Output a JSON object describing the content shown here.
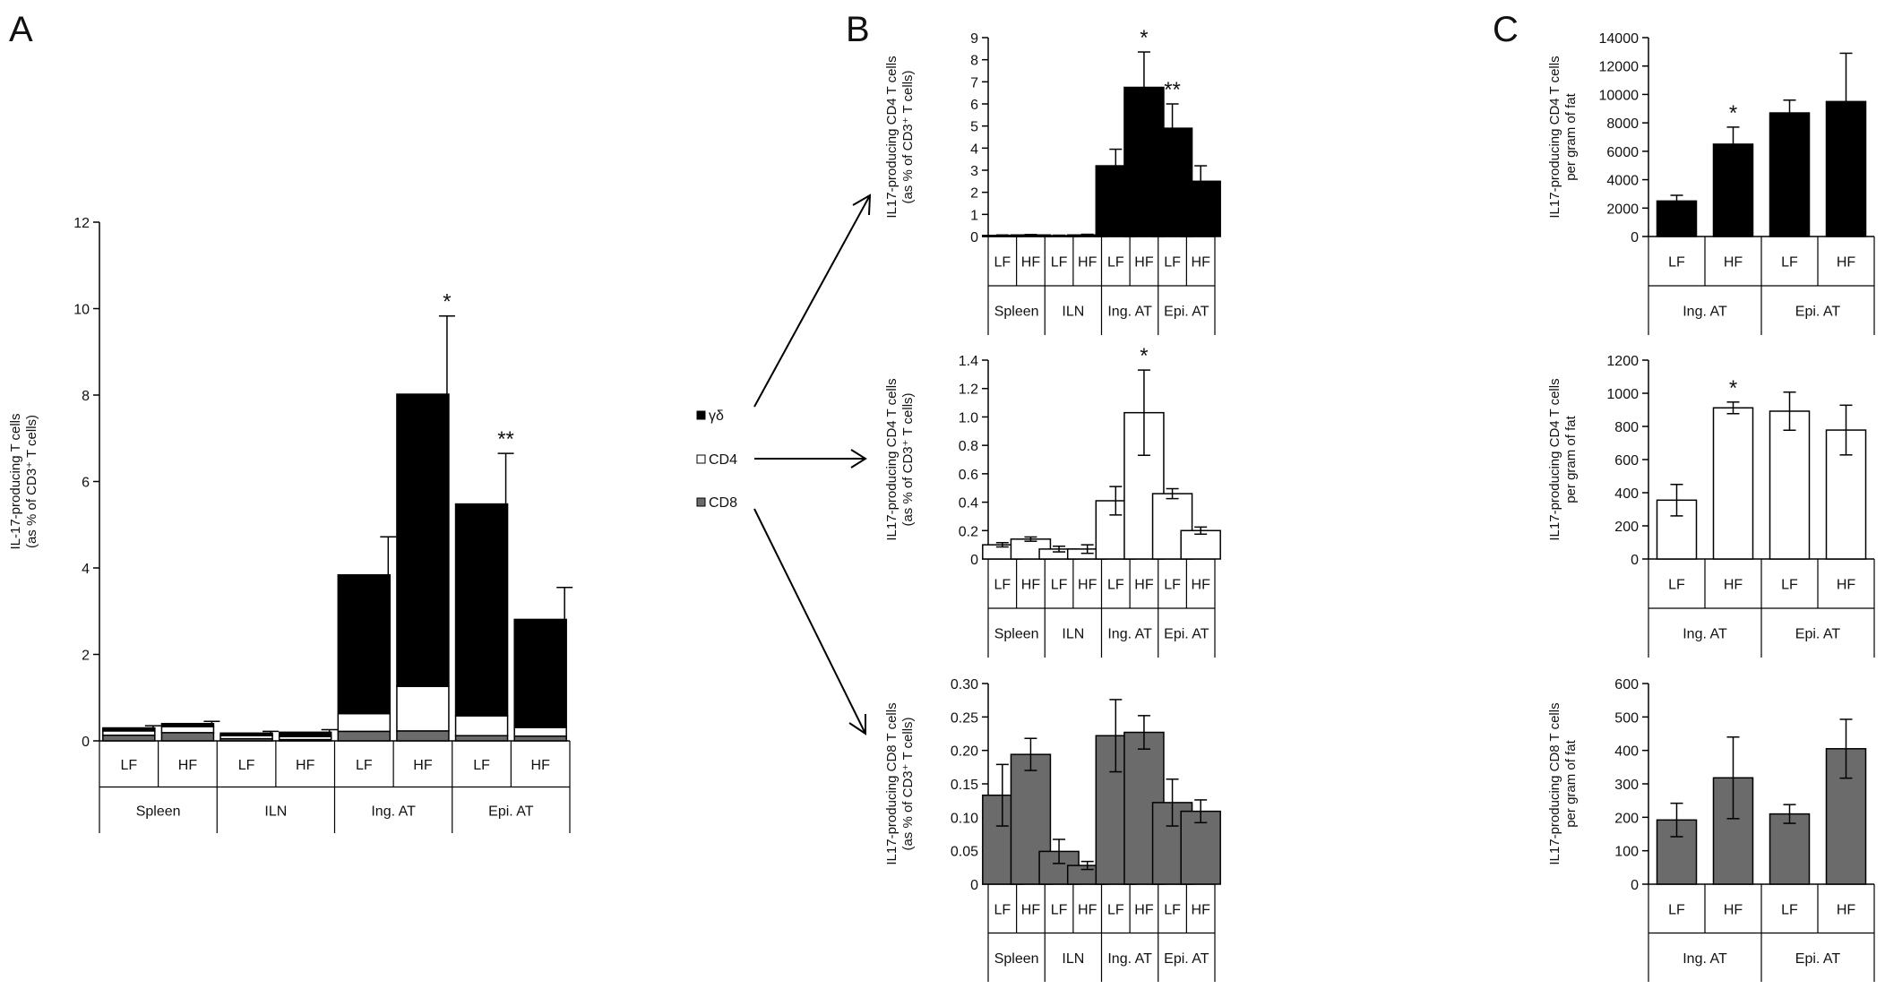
{
  "panel_letters": [
    "A",
    "B",
    "C"
  ],
  "legend": [
    {
      "label": "γδ",
      "color": "#000000"
    },
    {
      "label": "CD4",
      "color": "#ffffff"
    },
    {
      "label": "CD8",
      "color": "#6b6b6b"
    }
  ],
  "chart_data": [
    {
      "id": "A",
      "type": "bar",
      "stacked": true,
      "ylabel_lines": [
        "IL-17-producing T cells",
        "(as % of CD3⁺ T cells)"
      ],
      "ylim": [
        0,
        12
      ],
      "yticks": [
        "0",
        "2",
        "4",
        "6",
        "8",
        "10",
        "12"
      ],
      "categories": [
        "LF",
        "HF",
        "LF",
        "HF",
        "LF",
        "HF",
        "LF",
        "HF"
      ],
      "groups": [
        "Spleen",
        "ILN",
        "Ing. AT",
        "Epi. AT"
      ],
      "series": [
        {
          "name": "CD8",
          "color": "#6b6b6b",
          "values": [
            0.13,
            0.19,
            0.05,
            0.03,
            0.22,
            0.23,
            0.12,
            0.11
          ]
        },
        {
          "name": "CD4",
          "color": "#ffffff",
          "values": [
            0.1,
            0.14,
            0.07,
            0.07,
            0.41,
            1.03,
            0.46,
            0.2
          ]
        },
        {
          "name": "γδ",
          "color": "#000000",
          "values": [
            0.07,
            0.07,
            0.06,
            0.1,
            3.21,
            6.76,
            4.9,
            2.5
          ]
        }
      ],
      "error_tops": [
        0.35,
        0.45,
        0.22,
        0.26,
        4.72,
        9.83,
        6.65,
        3.55
      ],
      "stars": [
        "",
        "",
        "",
        "",
        "",
        "*",
        "**",
        ""
      ]
    },
    {
      "id": "B1",
      "type": "bar",
      "color": "#000000",
      "ylabel_lines": [
        "IL17-producing CD4 T cells",
        "(as % of CD3⁺ T cells)"
      ],
      "ylim": [
        0,
        9
      ],
      "yticks": [
        "0",
        "1",
        "2",
        "3",
        "4",
        "5",
        "6",
        "7",
        "8",
        "9"
      ],
      "categories": [
        "LF",
        "HF",
        "LF",
        "HF",
        "LF",
        "HF",
        "LF",
        "HF"
      ],
      "groups": [
        "Spleen",
        "ILN",
        "Ing. AT",
        "Epi. AT"
      ],
      "values": [
        0.05,
        0.07,
        0.04,
        0.07,
        3.2,
        6.75,
        4.9,
        2.5
      ],
      "errors": [
        0.02,
        0.02,
        0.02,
        0.03,
        0.75,
        1.6,
        1.1,
        0.7
      ],
      "stars": [
        "",
        "",
        "",
        "",
        "",
        "*",
        "**",
        ""
      ]
    },
    {
      "id": "B2",
      "type": "bar",
      "color": "#ffffff",
      "ylabel_lines": [
        "IL17-producing CD4 T cells",
        "(as % of CD3⁺ T cells)"
      ],
      "ylim": [
        0,
        1.4
      ],
      "yticks": [
        "0",
        "0.2",
        "0.4",
        "0.6",
        "0.8",
        "1.0",
        "1.2",
        "1.4"
      ],
      "categories": [
        "LF",
        "HF",
        "LF",
        "HF",
        "LF",
        "HF",
        "LF",
        "HF"
      ],
      "groups": [
        "Spleen",
        "ILN",
        "Ing. AT",
        "Epi. AT"
      ],
      "values": [
        0.1,
        0.14,
        0.07,
        0.07,
        0.41,
        1.03,
        0.46,
        0.2
      ],
      "errors": [
        0.015,
        0.015,
        0.02,
        0.03,
        0.1,
        0.3,
        0.035,
        0.025
      ],
      "stars": [
        "",
        "",
        "",
        "",
        "",
        "*",
        "",
        ""
      ]
    },
    {
      "id": "B3",
      "type": "bar",
      "color": "#6b6b6b",
      "ylabel_lines": [
        "IL17-producing CD8 T cells",
        "(as % of CD3⁺ T cells)"
      ],
      "ylim": [
        0,
        0.3
      ],
      "yticks": [
        "0",
        "0.05",
        "0.10",
        "0.15",
        "0.20",
        "0.25",
        "0.30"
      ],
      "categories": [
        "LF",
        "HF",
        "LF",
        "HF",
        "LF",
        "HF",
        "LF",
        "HF"
      ],
      "groups": [
        "Spleen",
        "ILN",
        "Ing. AT",
        "Epi. AT"
      ],
      "values": [
        0.133,
        0.194,
        0.049,
        0.028,
        0.222,
        0.227,
        0.122,
        0.109
      ],
      "errors": [
        0.046,
        0.024,
        0.018,
        0.006,
        0.054,
        0.025,
        0.035,
        0.017
      ],
      "stars": [
        "",
        "",
        "",
        "",
        "",
        "",
        "",
        ""
      ]
    },
    {
      "id": "C1",
      "type": "bar",
      "color": "#000000",
      "ylabel_lines": [
        "IL17-producing CD4 T cells",
        "per gram of fat"
      ],
      "ylim": [
        0,
        14000
      ],
      "yticks": [
        "0",
        "2000",
        "4000",
        "6000",
        "8000",
        "10000",
        "12000",
        "14000"
      ],
      "categories": [
        "LF",
        "HF",
        "LF",
        "HF"
      ],
      "groups": [
        "Ing. AT",
        "Epi. AT"
      ],
      "values": [
        2500,
        6500,
        8700,
        9500
      ],
      "errors": [
        400,
        1200,
        900,
        3400
      ],
      "stars": [
        "",
        "*",
        "",
        ""
      ]
    },
    {
      "id": "C2",
      "type": "bar",
      "color": "#ffffff",
      "ylabel_lines": [
        "IL17-producing CD4 T cells",
        "per gram of fat"
      ],
      "ylim": [
        0,
        1200
      ],
      "yticks": [
        "0",
        "200",
        "400",
        "600",
        "800",
        "1000",
        "1200"
      ],
      "categories": [
        "LF",
        "HF",
        "LF",
        "HF"
      ],
      "groups": [
        "Ing. AT",
        "Epi. AT"
      ],
      "values": [
        355,
        912,
        892,
        778
      ],
      "errors": [
        95,
        35,
        115,
        150
      ],
      "stars": [
        "",
        "*",
        "",
        ""
      ]
    },
    {
      "id": "C3",
      "type": "bar",
      "color": "#6b6b6b",
      "ylabel_lines": [
        "IL17-producing CD8 T cells",
        "per gram of fat"
      ],
      "ylim": [
        0,
        600
      ],
      "yticks": [
        "0",
        "100",
        "200",
        "300",
        "400",
        "500",
        "600"
      ],
      "categories": [
        "LF",
        "HF",
        "LF",
        "HF"
      ],
      "groups": [
        "Ing. AT",
        "Epi. AT"
      ],
      "values": [
        192,
        318,
        210,
        405
      ],
      "errors": [
        50,
        122,
        28,
        88
      ],
      "stars": [
        "",
        "",
        "",
        ""
      ]
    }
  ]
}
